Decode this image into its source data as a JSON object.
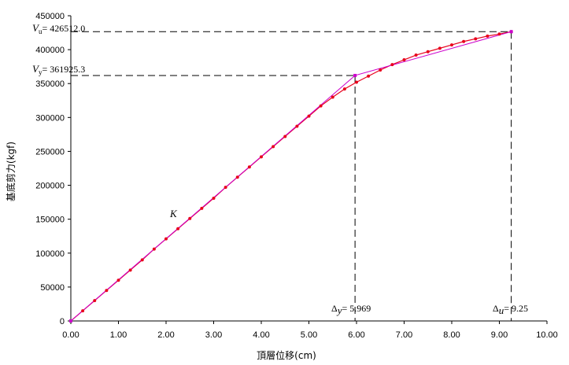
{
  "chart_data": {
    "type": "line",
    "xlabel": "頂層位移(cm)",
    "ylabel": "基底剪力(kgf)",
    "xlim": [
      0,
      10
    ],
    "ylim": [
      0,
      450000
    ],
    "x_ticks": [
      "0.00",
      "1.00",
      "2.00",
      "3.00",
      "4.00",
      "5.00",
      "6.00",
      "7.00",
      "8.00",
      "9.00",
      "10.00"
    ],
    "y_ticks": [
      "0",
      "50000",
      "100000",
      "150000",
      "200000",
      "250000",
      "300000",
      "350000",
      "400000",
      "450000"
    ],
    "grid": false,
    "series": [
      {
        "color": "#e8001c",
        "x": [
          0,
          0.25,
          0.5,
          0.75,
          1.0,
          1.25,
          1.5,
          1.75,
          2.0,
          2.25,
          2.5,
          2.75,
          3.0,
          3.25,
          3.5,
          3.75,
          4.0,
          4.25,
          4.5,
          4.75,
          5.0,
          5.25,
          5.5,
          5.75,
          6.0,
          6.25,
          6.5,
          6.75,
          7.0,
          7.25,
          7.5,
          7.75,
          8.0,
          8.25,
          8.5,
          8.75,
          9.0,
          9.25
        ],
        "y": [
          0,
          15000,
          30000,
          45000,
          60000,
          75000,
          90000,
          106000,
          121000,
          136000,
          151000,
          166000,
          181000,
          197000,
          212000,
          227000,
          242000,
          257000,
          272000,
          287000,
          302000,
          317000,
          330000,
          342000,
          352000,
          361000,
          370000,
          378000,
          385000,
          392000,
          397000,
          402000,
          407000,
          412000,
          416000,
          420000,
          423000,
          426512
        ]
      },
      {
        "color": "#cc00cc",
        "x": [
          0,
          5.969,
          9.25
        ],
        "y": [
          0,
          361925.3,
          426512.0
        ]
      }
    ],
    "annotations": {
      "vu_label": "V",
      "vu_sub": "u",
      "vu_value": "= 426512.0",
      "vy_label": "V",
      "vy_sub": "y",
      "vy_value": "= 361925.3",
      "dy_label": "Δ",
      "dy_sub": "y",
      "dy_value": "= 5.969",
      "du_label": "Δ",
      "du_sub": "u",
      "du_value": "= 9.25",
      "k_label": "K"
    }
  }
}
